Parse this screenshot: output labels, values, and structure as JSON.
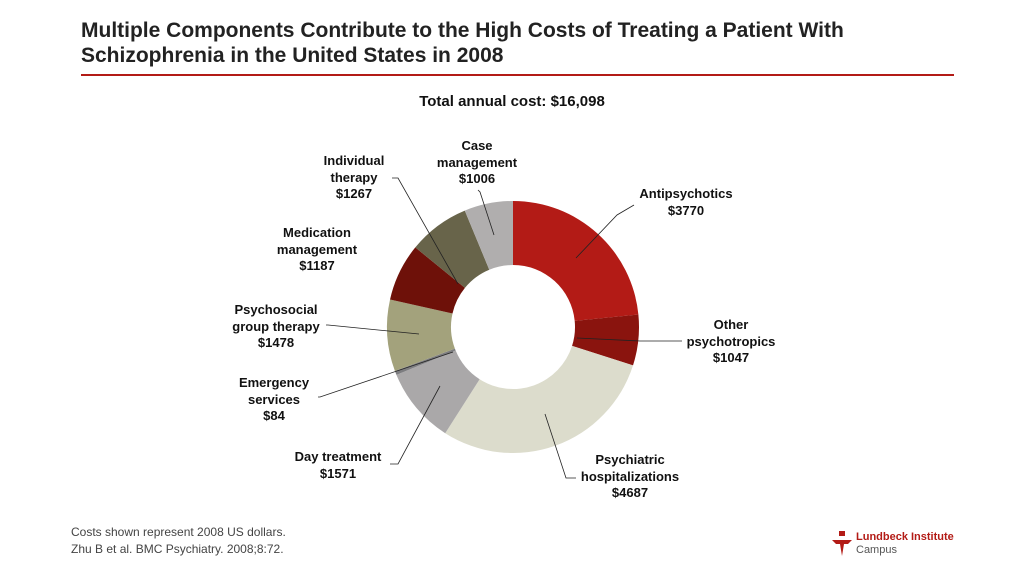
{
  "title": "Multiple Components Contribute to the High Costs of Treating a Patient With Schizophrenia in the United States in 2008",
  "footer": [
    "Costs shown represent 2008 US dollars.",
    "Zhu B et al. BMC Psychiatry. 2008;8:72."
  ],
  "logo": {
    "line1": "Lundbeck Institute",
    "line2": "Campus"
  },
  "chart_data": {
    "type": "pie",
    "donut": true,
    "title": "Total annual cost: $16,098",
    "slices": [
      {
        "label": "Antipsychotics",
        "value": 3770,
        "text": "$3770",
        "color": "#b31b16"
      },
      {
        "label": "Other psychotropics",
        "value": 1047,
        "text": "$1047",
        "color": "#8a140e"
      },
      {
        "label": "Psychiatric hospitalizations",
        "value": 4687,
        "text": "$4687",
        "color": "#dcdccc"
      },
      {
        "label": "Day treatment",
        "value": 1571,
        "text": "$1571",
        "color": "#aaa8a9"
      },
      {
        "label": "Emergency services",
        "value": 84,
        "text": "$84",
        "color": "#7d7d80"
      },
      {
        "label": "Psychosocial group therapy",
        "value": 1478,
        "text": "$1478",
        "color": "#a3a27c"
      },
      {
        "label": "Medication management",
        "value": 1187,
        "text": "$1187",
        "color": "#6e1109"
      },
      {
        "label": "Individual therapy",
        "value": 1267,
        "text": "$1267",
        "color": "#68644a"
      },
      {
        "label": "Case management",
        "value": 1006,
        "text": "$1006",
        "color": "#b0aeae"
      }
    ]
  }
}
